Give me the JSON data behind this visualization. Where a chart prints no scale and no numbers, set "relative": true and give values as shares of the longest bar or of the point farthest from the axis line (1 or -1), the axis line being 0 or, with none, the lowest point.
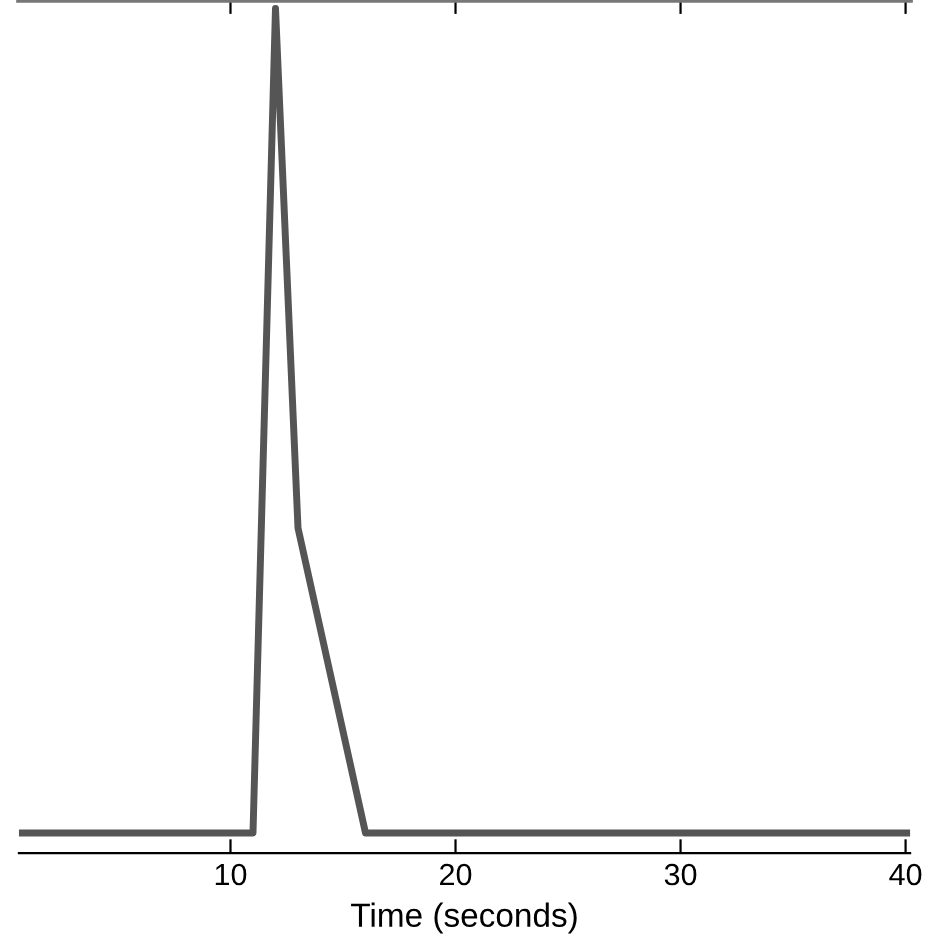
{
  "chart_data": {
    "type": "line",
    "xlabel": "Time (seconds)",
    "relative": true,
    "x": [
      0.6,
      11,
      12,
      13,
      16,
      40.2
    ],
    "series": [
      {
        "color": "#555555",
        "values": [
          0.024,
          0.024,
          1,
          0.385,
          0.024,
          0.024
        ]
      }
    ],
    "xlim": [
      0.6,
      40.2
    ],
    "xticks": [
      10,
      20,
      30,
      40
    ],
    "tick_labels": "x",
    "grid": false,
    "legend": false,
    "marker": "none",
    "line_style": "solid"
  }
}
